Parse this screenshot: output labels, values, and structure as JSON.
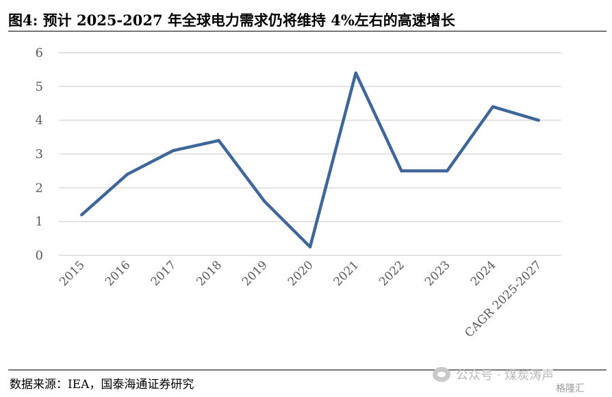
{
  "title": "图4:  预计 2025-2027 年全球电力需求仍将维持 4%左右的高速增长",
  "source": "数据来源：IEA，国泰海通证券研究",
  "watermark": {
    "text": "公众号 · 煤炭涛声",
    "logo": "格隆汇"
  },
  "colors": {
    "line": "#3e6698",
    "grid": "#d9d9d9",
    "tick": "#595959"
  },
  "chart_data": {
    "type": "line",
    "title": "",
    "xlabel": "",
    "ylabel": "",
    "categories": [
      "2015",
      "2016",
      "2017",
      "2018",
      "2019",
      "2020",
      "2021",
      "2022",
      "2023",
      "2024",
      "CAGR 2025-2027"
    ],
    "series": [
      {
        "values": [
          1.2,
          2.4,
          3.1,
          3.4,
          1.6,
          0.25,
          5.4,
          2.5,
          2.5,
          4.4,
          4.0
        ]
      }
    ],
    "ylim": [
      0,
      6
    ],
    "yticks": [
      "0",
      "1",
      "2",
      "3",
      "4",
      "5",
      "6"
    ],
    "grid": true,
    "legend": "none"
  }
}
